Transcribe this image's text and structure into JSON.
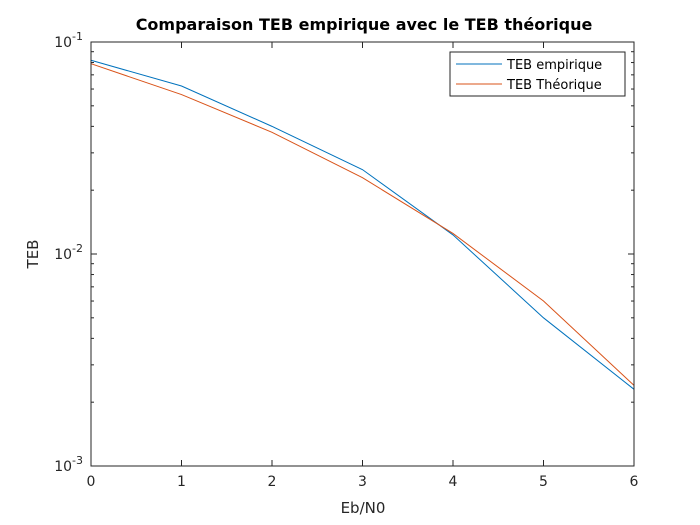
{
  "chart_data": {
    "type": "line",
    "title": "Comparaison TEB empirique avec le TEB théorique",
    "xlabel": "Eb/N0",
    "ylabel": "TEB",
    "xlim": [
      0,
      6
    ],
    "ylim": [
      0.001,
      0.1
    ],
    "yscale": "log",
    "x_ticks": [
      "0",
      "1",
      "2",
      "3",
      "4",
      "5",
      "6"
    ],
    "y_ticks": [
      {
        "base": "10",
        "exp": "-1"
      },
      {
        "base": "10",
        "exp": "-2"
      },
      {
        "base": "10",
        "exp": "-3"
      }
    ],
    "grid": false,
    "legend_position": "top-right",
    "x": [
      0,
      1,
      2,
      3,
      4,
      5,
      6
    ],
    "series": [
      {
        "name": "TEB empirique",
        "color": "#0072BD",
        "values": [
          0.082,
          0.062,
          0.04,
          0.025,
          0.0123,
          0.005,
          0.0023
        ]
      },
      {
        "name": "TEB Théorique",
        "color": "#D95319",
        "values": [
          0.079,
          0.0565,
          0.0375,
          0.0229,
          0.0125,
          0.006,
          0.0024
        ]
      }
    ]
  }
}
